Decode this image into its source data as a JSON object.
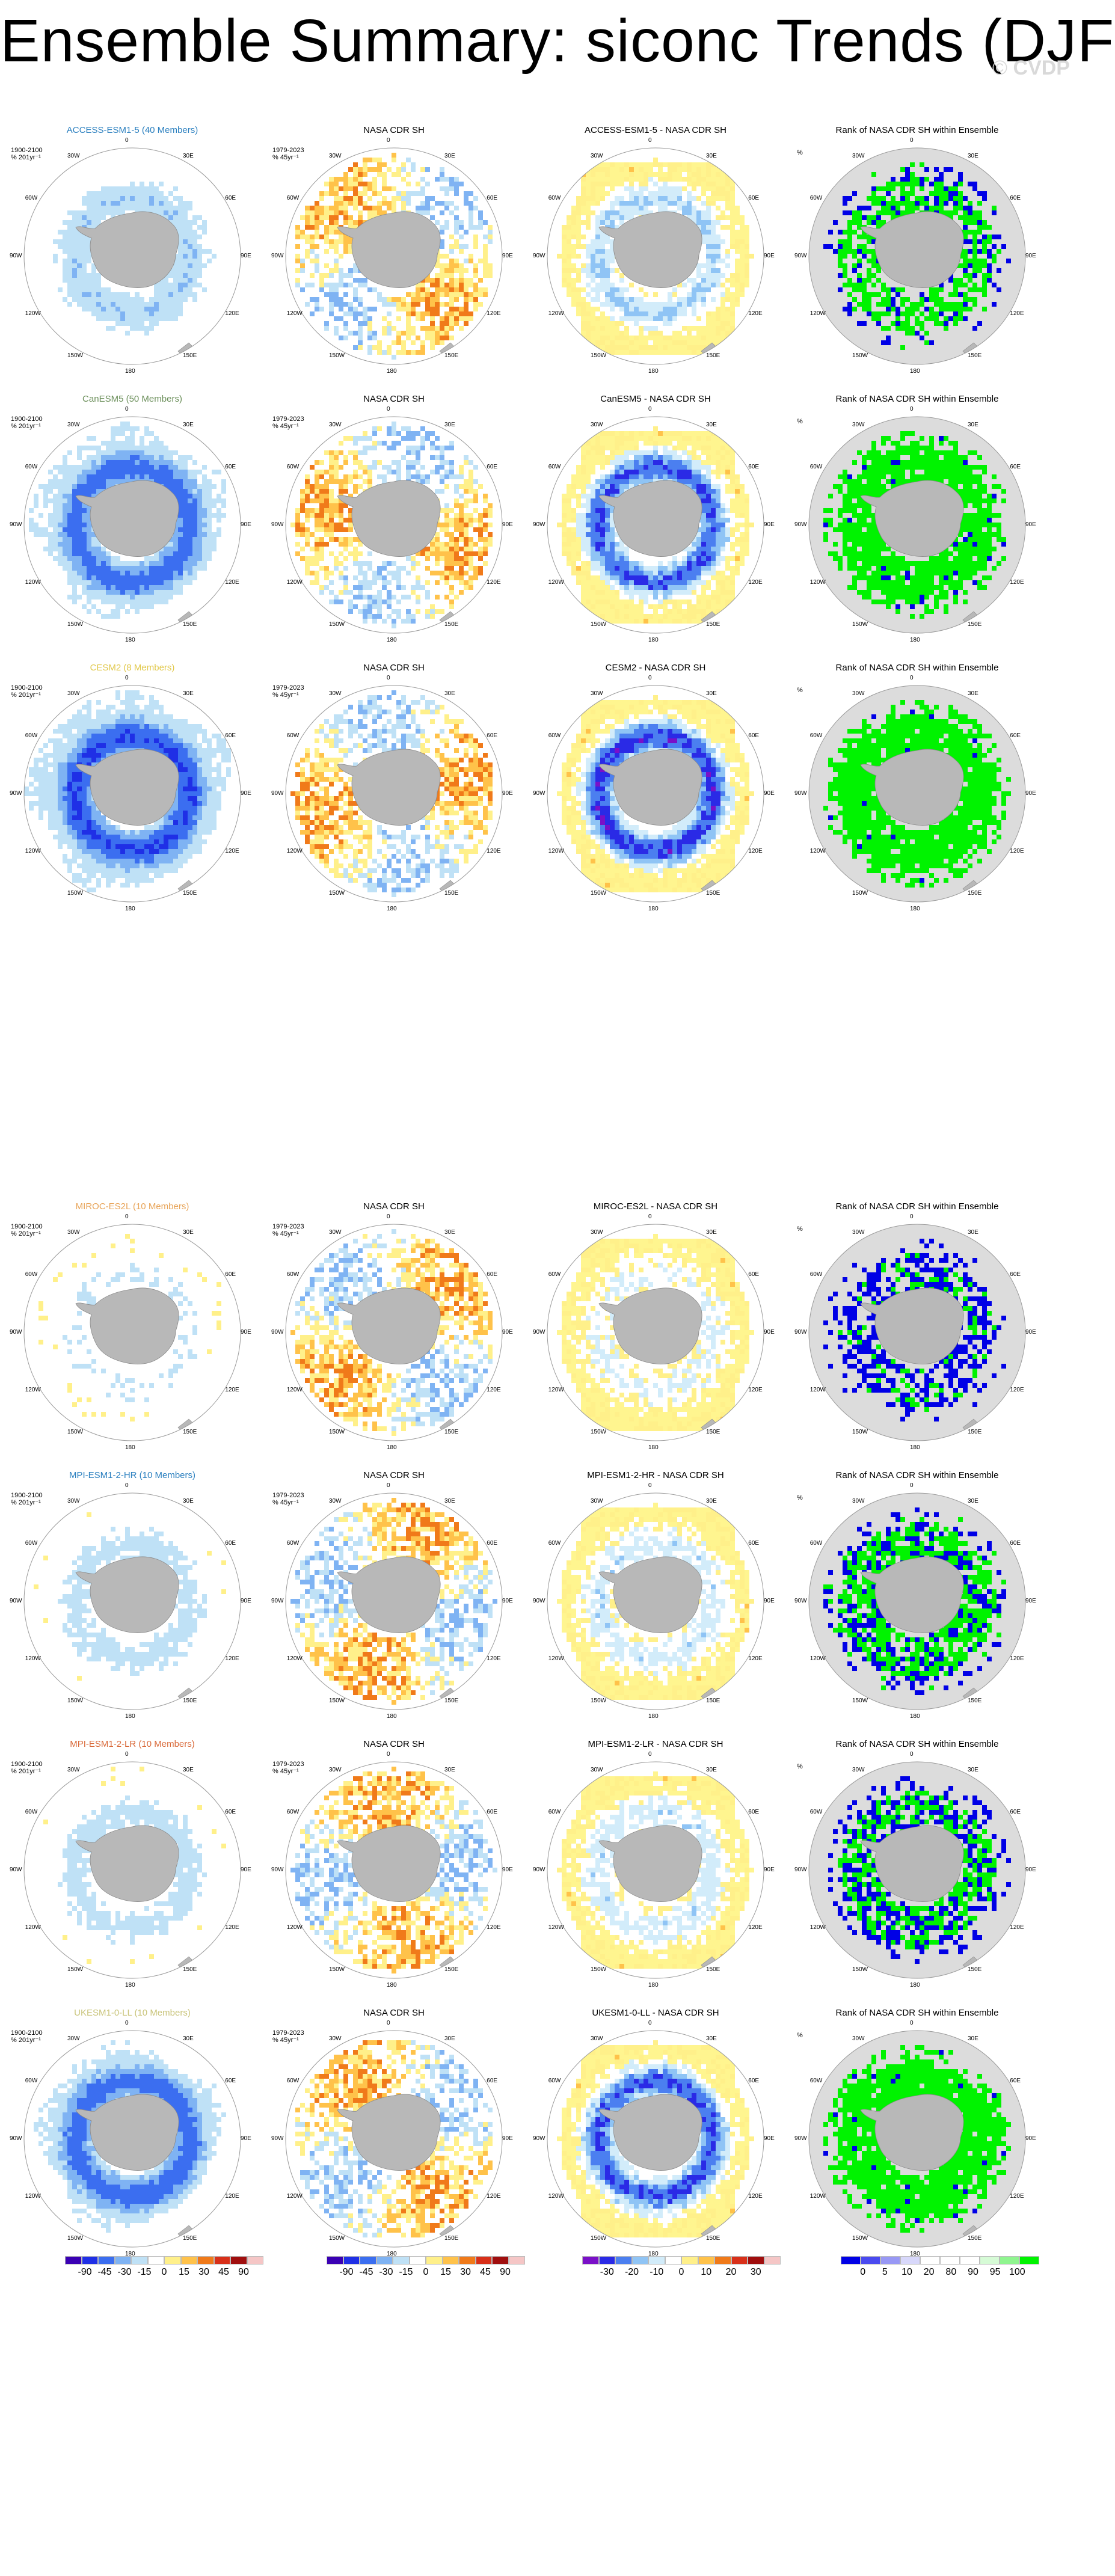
{
  "title": "Ensemble Summary: siconc Trends (DJF)",
  "watermark": "CVDP",
  "watermark_symbol": "©",
  "colors": {
    "land": "#b8b8b8",
    "disk_bg": "#ffffff",
    "rank_bg": "#dcdcdc",
    "outline": "#9a9a9a",
    "rank_high": "#00f300",
    "rank_low": "#0000e6",
    "rank_mid": "#ffffff",
    "diff_bg": "#fff58f",
    "model_colors": [
      "#2a7fbf",
      "#6b8f5a",
      "#e1c84a",
      "#e8a55a",
      "#2a7fbf",
      "#d96a3a",
      "#c9c47a"
    ]
  },
  "chart_data": {
    "type": "heatmap",
    "projection": "south polar stereographic",
    "longitude_labels": [
      "0",
      "30E",
      "60E",
      "90E",
      "120E",
      "150E",
      "180",
      "150W",
      "120W",
      "90W",
      "60W",
      "30W"
    ],
    "observation_label": "NASA CDR SH",
    "column_titles": {
      "obs": "NASA CDR SH",
      "diff_suffix": " - NASA CDR SH",
      "rank": "Rank of NASA CDR SH within Ensemble"
    },
    "model_period_label": "1900-2100",
    "model_unit_label": "% 201yr⁻¹",
    "obs_period_label": "1979-2023",
    "obs_unit_label": "% 45yr⁻¹",
    "rank_unit_label": "%",
    "rows": [
      {
        "model": "ACCESS-ESM1-5",
        "members": 40,
        "label": "ACCESS-ESM1-5 (40 Members)",
        "diff_title": "ACCESS-ESM1-5 - NASA CDR SH",
        "model_mean_trend": -20,
        "rank_fraction_above_90": 0.55,
        "rank_fraction_below_10": 0.12
      },
      {
        "model": "CanESM5",
        "members": 50,
        "label": "CanESM5 (50 Members)",
        "diff_title": "CanESM5 - NASA CDR SH",
        "model_mean_trend": -40,
        "rank_fraction_above_90": 0.85,
        "rank_fraction_below_10": 0.04
      },
      {
        "model": "CESM2",
        "members": 8,
        "label": "CESM2 (8 Members)",
        "diff_title": "CESM2 - NASA CDR SH",
        "model_mean_trend": -45,
        "rank_fraction_above_90": 0.92,
        "rank_fraction_below_10": 0.02
      },
      {
        "model": "MIROC-ES2L",
        "members": 10,
        "label": "MIROC-ES2L (10 Members)",
        "diff_title": "MIROC-ES2L - NASA CDR SH",
        "model_mean_trend": -10,
        "rank_fraction_above_90": 0.15,
        "rank_fraction_below_10": 0.45
      },
      {
        "model": "MPI-ESM1-2-HR",
        "members": 10,
        "label": "MPI-ESM1-2-HR (10 Members)",
        "diff_title": "MPI-ESM1-2-HR - NASA CDR SH",
        "model_mean_trend": -15,
        "rank_fraction_above_90": 0.55,
        "rank_fraction_below_10": 0.25
      },
      {
        "model": "MPI-ESM1-2-LR",
        "members": 10,
        "label": "MPI-ESM1-2-LR (10 Members)",
        "diff_title": "MPI-ESM1-2-LR - NASA CDR SH",
        "model_mean_trend": -15,
        "rank_fraction_above_90": 0.45,
        "rank_fraction_below_10": 0.3
      },
      {
        "model": "UKESM1-0-LL",
        "members": 10,
        "label": "UKESM1-0-LL (10 Members)",
        "diff_title": "UKESM1-0-LL - NASA CDR SH",
        "model_mean_trend": -40,
        "rank_fraction_above_90": 0.9,
        "rank_fraction_below_10": 0.03
      }
    ],
    "colorbars": [
      {
        "name": "model_trend",
        "ticks": [
          "-90",
          "-45",
          "-30",
          "-15",
          "0",
          "15",
          "30",
          "45",
          "90"
        ],
        "colors": [
          "#3a00b4",
          "#1f2fe6",
          "#3b6ef0",
          "#7fb3f3",
          "#bfe1f6",
          "#ffffff",
          "#fff08a",
          "#ffc24a",
          "#f07a1a",
          "#d8301a",
          "#a00e0e",
          "#f5c6c6"
        ]
      },
      {
        "name": "obs_trend",
        "ticks": [
          "-90",
          "-45",
          "-30",
          "-15",
          "0",
          "15",
          "30",
          "45",
          "90"
        ],
        "colors": [
          "#3a00b4",
          "#1f2fe6",
          "#3b6ef0",
          "#7fb3f3",
          "#bfe1f6",
          "#ffffff",
          "#fff08a",
          "#ffc24a",
          "#f07a1a",
          "#d8301a",
          "#a00e0e",
          "#f5c6c6"
        ]
      },
      {
        "name": "difference",
        "ticks": [
          "-30",
          "-20",
          "-10",
          "0",
          "10",
          "20",
          "30"
        ],
        "colors": [
          "#7a10c8",
          "#2a2ae6",
          "#4b7ff0",
          "#8fc4f5",
          "#d2ecfa",
          "#ffffff",
          "#fff08a",
          "#ffc24a",
          "#f07a1a",
          "#d8301a",
          "#a00e0e",
          "#f5c6c6"
        ]
      },
      {
        "name": "rank",
        "ticks": [
          "0",
          "5",
          "10",
          "20",
          "80",
          "90",
          "95",
          "100"
        ],
        "colors": [
          "#0000e6",
          "#4a4af0",
          "#9898f5",
          "#d8d8fb",
          "#ffffff",
          "#ffffff",
          "#ffffff",
          "#d6fbd6",
          "#8ff58f",
          "#00f300"
        ]
      }
    ]
  }
}
